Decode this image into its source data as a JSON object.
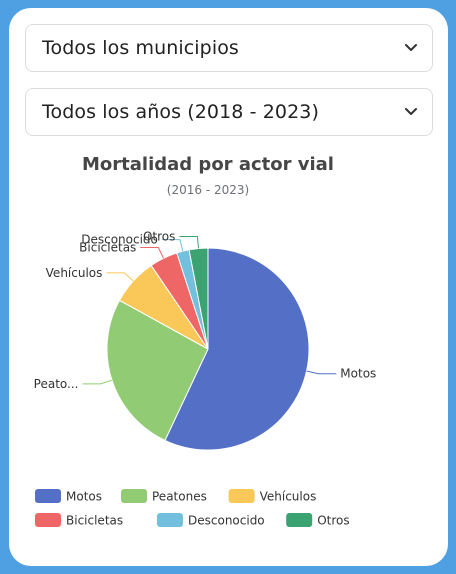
{
  "filters": {
    "municipality": {
      "selected": "Todos los municipios"
    },
    "years": {
      "selected": "Todos los años (2018 - 2023)"
    }
  },
  "icons": {
    "dropdown": "chevron-down-icon"
  },
  "colors": {
    "page_background": "#4f9fe3",
    "card_background": "#ffffff"
  },
  "chart_data": {
    "type": "pie",
    "title": "Mortalidad por actor vial",
    "subtitle": "(2016 - 2023)",
    "categories": [
      "Motos",
      "Peatones",
      "Vehículos",
      "Bicicletas",
      "Desconocido",
      "Otros"
    ],
    "slice_labels": [
      "Motos",
      "Peato...",
      "Vehículos",
      "Bicicletas",
      "Desconocido",
      "Otros"
    ],
    "values": [
      57,
      26,
      7.5,
      4.5,
      2,
      3
    ],
    "colors": [
      "#5470c6",
      "#91cc75",
      "#fac858",
      "#ee6666",
      "#73c0de",
      "#3ba272"
    ],
    "legend_position": "bottom-left"
  }
}
